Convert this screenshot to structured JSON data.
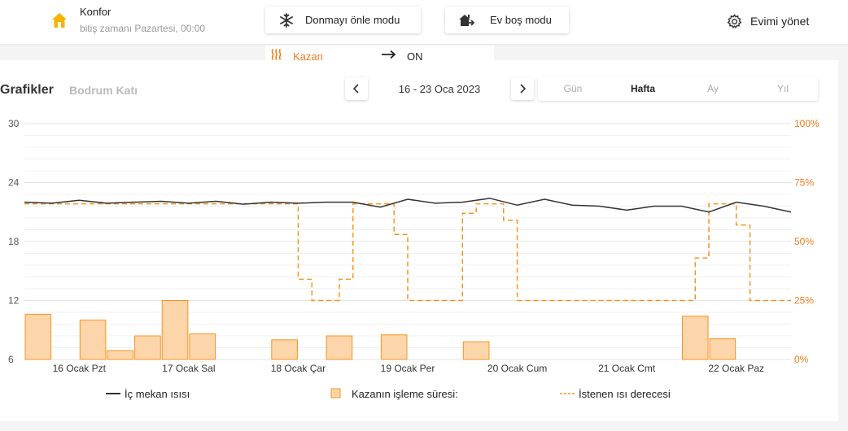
{
  "header": {
    "mode_title": "Konfor",
    "mode_subtitle": "bitiş zamanı Pazartesi, 00:00",
    "frost_button_label": "Donmayı önle modu",
    "away_button_label": "Ev boş modu",
    "manage_label": "Evimi yönet",
    "accent_color": "#f5b400"
  },
  "boiler_status": {
    "label": "Kazan",
    "state": "ON",
    "color": "#f07c1c"
  },
  "graphs": {
    "title": "Grafikler",
    "zone": "Bodrum Katı",
    "date_range": "16 - 23 Oca 2023",
    "periods": [
      "Gün",
      "Hafta",
      "Ay",
      "Yıl"
    ],
    "active_period": "Hafta"
  },
  "chart_data": {
    "type": "line",
    "x_unit": "day",
    "x_range": [
      0,
      7
    ],
    "y_left": {
      "range": [
        6,
        30
      ],
      "ticks": [
        6,
        12,
        18,
        24,
        30
      ]
    },
    "y_right": {
      "range": [
        0,
        100
      ],
      "ticks": [
        "0%",
        "25%",
        "50%",
        "75%",
        "100%"
      ]
    },
    "x_tick_labels": [
      "16 Ocak Pzt",
      "17 Ocak Sal",
      "18 Ocak Çar",
      "19 Ocak Per",
      "20 Ocak Cum",
      "21 Ocak Cmt",
      "22 Ocak Paz"
    ],
    "legend": [
      "İç mekan ısısı",
      "Kazanın işleme süresi:",
      "İstenen ısı derecesi"
    ],
    "series": [
      {
        "name": "İç mekan ısısı",
        "color": "#333333",
        "x": [
          0,
          0.25,
          0.5,
          0.75,
          1,
          1.25,
          1.5,
          1.75,
          2,
          2.25,
          2.5,
          2.75,
          3,
          3.25,
          3.5,
          3.75,
          4,
          4.25,
          4.5,
          4.75,
          5,
          5.25,
          5.5,
          5.75,
          6,
          6.25,
          6.5,
          6.75,
          7
        ],
        "y": [
          22.0,
          21.9,
          22.2,
          21.9,
          22.0,
          22.1,
          21.9,
          22.1,
          21.8,
          22.0,
          21.9,
          22.0,
          22.0,
          21.5,
          22.3,
          21.9,
          22.0,
          22.4,
          21.7,
          22.3,
          21.7,
          21.6,
          21.2,
          21.6,
          21.6,
          21.0,
          22.0,
          21.6,
          21.0
        ]
      },
      {
        "name": "İstenen ısı derecesi",
        "color": "#f7941d",
        "style": "dashed",
        "x": [
          0,
          2.5,
          2.5,
          2.625,
          2.625,
          2.875,
          2.875,
          3.0,
          3.0,
          3.375,
          3.375,
          3.5,
          3.5,
          4.0,
          4.0,
          4.125,
          4.125,
          4.375,
          4.375,
          4.5,
          4.5,
          6.125,
          6.125,
          6.25,
          6.25,
          6.5,
          6.5,
          6.625,
          6.625,
          7.0
        ],
        "y": [
          66,
          66,
          34,
          34,
          25,
          25,
          34,
          34,
          66,
          66,
          53,
          53,
          25,
          25,
          62,
          62,
          66,
          66,
          59,
          59,
          25,
          25,
          43,
          43,
          66,
          66,
          57,
          57,
          25,
          25
        ]
      }
    ],
    "bars": {
      "name": "Kazanın işleme süresi:",
      "fill": "#fdd5ab",
      "stroke": "#f7941d",
      "width": 0.25,
      "x": [
        0.125,
        0.625,
        0.875,
        1.125,
        1.375,
        1.625,
        2.375,
        2.875,
        3.375,
        4.125,
        6.125,
        6.375
      ],
      "values": [
        10.6,
        10.0,
        6.9,
        8.4,
        12.0,
        8.6,
        8.0,
        8.4,
        8.5,
        7.8,
        10.4,
        8.1
      ]
    }
  }
}
